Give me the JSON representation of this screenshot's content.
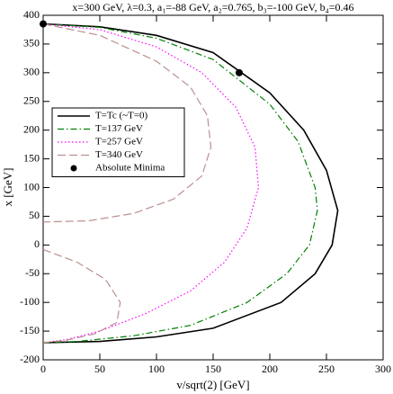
{
  "chart_data": {
    "type": "line",
    "title": "x=300 GeV, λ=0.3, a₁=-88 GeV, a₂=0.765, b₃=-100 GeV, b₄=0.46",
    "x_label": "v/sqrt(2) [GeV]",
    "y_label": "x [GeV]",
    "xlim": [
      0,
      300
    ],
    "ylim": [
      -200,
      400
    ],
    "xticks": [
      0,
      50,
      100,
      150,
      200,
      250,
      300
    ],
    "yticks": [
      -200,
      -150,
      -100,
      -50,
      0,
      50,
      100,
      150,
      200,
      250,
      300,
      350,
      400
    ],
    "grid": false,
    "legend": "upper-left",
    "series": [
      {
        "name": "T=Tc (~T=0)",
        "color": "#000000",
        "dash": "solid",
        "x": [
          0,
          50,
          100,
          150,
          175,
          200,
          230,
          250,
          260,
          255,
          240,
          210,
          150,
          100,
          50,
          0
        ],
        "values": [
          385,
          380,
          365,
          335,
          300,
          265,
          200,
          130,
          60,
          0,
          -50,
          -100,
          -145,
          -160,
          -168,
          -170
        ]
      },
      {
        "name": "T=137 GeV",
        "color": "#008000",
        "dash": "dash-dot",
        "x": [
          0,
          50,
          100,
          150,
          200,
          225,
          240,
          242,
          235,
          215,
          180,
          130,
          80,
          30,
          0
        ],
        "values": [
          385,
          379,
          360,
          323,
          245,
          180,
          100,
          60,
          0,
          -50,
          -100,
          -140,
          -158,
          -168,
          -170
        ]
      },
      {
        "name": "T=257 GeV",
        "color": "#ff00ff",
        "dash": "dotted",
        "x": [
          0,
          50,
          100,
          140,
          170,
          187,
          190,
          180,
          160,
          130,
          90,
          50,
          20,
          0
        ],
        "values": [
          385,
          375,
          345,
          300,
          240,
          170,
          100,
          30,
          -30,
          -80,
          -120,
          -150,
          -165,
          -170
        ]
      },
      {
        "name": "T=340 GeV",
        "color": "#bc8f8f",
        "dash": "long-dash",
        "x": [
          0,
          50,
          100,
          130,
          145,
          148,
          140,
          115,
          80,
          40,
          0,
          null,
          0,
          30,
          55,
          68,
          65,
          45,
          20,
          0
        ],
        "values": [
          385,
          365,
          320,
          275,
          225,
          170,
          120,
          80,
          55,
          42,
          40,
          null,
          -8,
          -30,
          -60,
          -100,
          -135,
          -155,
          -166,
          -170
        ]
      },
      {
        "name": "Absolute Minima",
        "color": "#000000",
        "marker": "circle",
        "x": [
          0,
          173
        ],
        "values": [
          385,
          300
        ]
      }
    ]
  }
}
